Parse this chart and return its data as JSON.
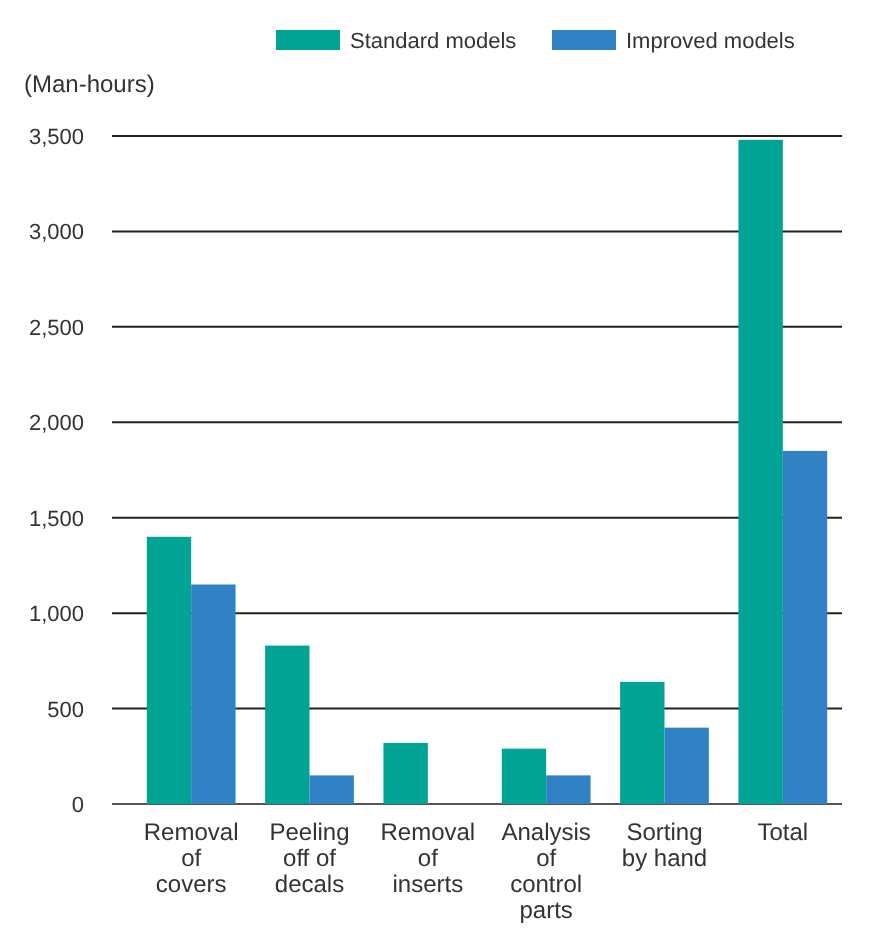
{
  "chart_data": {
    "type": "bar",
    "ylabel": "(Man-hours)",
    "categories": [
      "Removal of covers",
      "Peeling off of decals",
      "Removal of inserts",
      "Analysis of control parts",
      "Sorting by hand",
      "Total"
    ],
    "series": [
      {
        "name": "Standard models",
        "color": "#00a394",
        "values": [
          1400,
          830,
          320,
          290,
          640,
          3480
        ]
      },
      {
        "name": "Improved models",
        "color": "#3182c4",
        "values": [
          1150,
          150,
          0,
          150,
          400,
          1850
        ]
      }
    ],
    "ylim": [
      0,
      3500
    ],
    "yticks": [
      {
        "value": 0,
        "label": "0"
      },
      {
        "value": 500,
        "label": "500"
      },
      {
        "value": 1000,
        "label": "1,000"
      },
      {
        "value": 1500,
        "label": "1,500"
      },
      {
        "value": 2000,
        "label": "2,000"
      },
      {
        "value": 2500,
        "label": "2,500"
      },
      {
        "value": 3000,
        "label": "3,000"
      },
      {
        "value": 3500,
        "label": "3,500"
      }
    ],
    "grid": "y",
    "legend": "top right"
  }
}
